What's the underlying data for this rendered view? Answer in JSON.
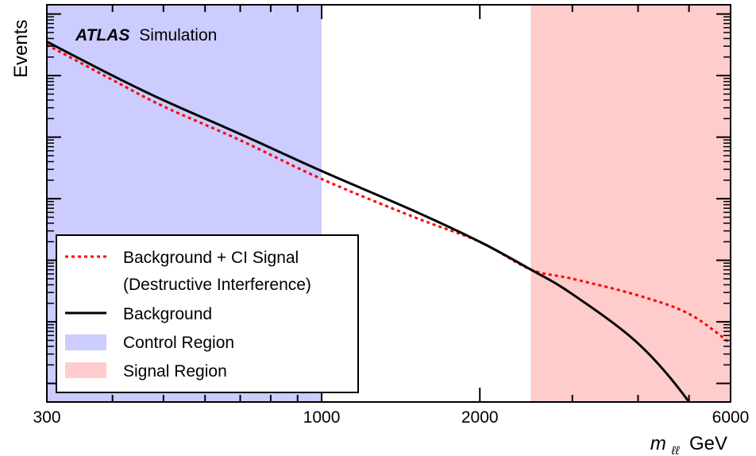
{
  "chart_data": {
    "type": "line",
    "x_scale": "log",
    "y_scale": "log",
    "xlim": [
      300,
      6000
    ],
    "x_ticks": [
      300,
      1000,
      2000,
      6000
    ],
    "xlabel_symbol": "m",
    "xlabel_subscript": "ℓℓ",
    "xlabel_unit": "GeV",
    "ylabel": "Events",
    "grid": false,
    "legend_position": "bottom-left",
    "experiment": "ATLAS",
    "experiment_tag": "Simulation",
    "regions": [
      {
        "name": "Control Region",
        "x_range": [
          300,
          1000
        ],
        "color": "#ccccff"
      },
      {
        "name": "Signal Region",
        "x_range": [
          2500,
          6000
        ],
        "color": "#ffcccc"
      }
    ],
    "series": [
      {
        "name": "Background + CI Signal",
        "name_line2": "(Destructive Interference)",
        "style": "dotted",
        "color": "#ff0000",
        "x": [
          300,
          400,
          500,
          700,
          1000,
          1500,
          2000,
          2500,
          3000,
          4000,
          5000,
          6000
        ],
        "y": [
          5.5,
          4.93,
          4.5,
          3.95,
          3.32,
          2.7,
          2.3,
          1.85,
          1.7,
          1.43,
          1.13,
          0.65
        ]
      },
      {
        "name": "Background",
        "style": "solid",
        "color": "#000000",
        "x": [
          300,
          400,
          500,
          700,
          1000,
          1500,
          2000,
          2500,
          3000,
          4000,
          5000,
          6000
        ],
        "y": [
          5.55,
          5.0,
          4.6,
          4.05,
          3.45,
          2.8,
          2.3,
          1.85,
          1.45,
          0.65,
          -0.3,
          -1.4
        ]
      }
    ]
  }
}
